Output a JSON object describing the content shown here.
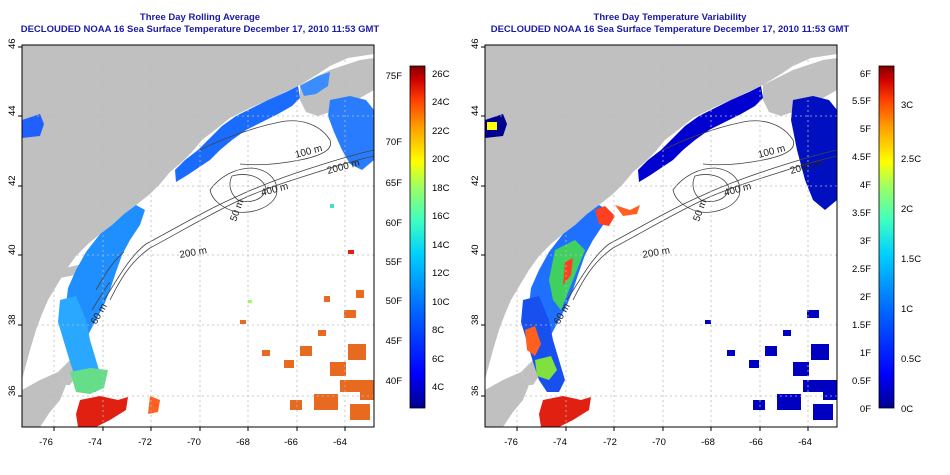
{
  "left": {
    "title": "Three Day Rolling Average",
    "subtitle": "DECLOUDED NOAA 16 Sea Surface Temperature December 17, 2010 11:53 GMT",
    "colorbar_f": [
      "75F",
      "70F",
      "65F",
      "60F",
      "55F",
      "50F",
      "45F",
      "40F"
    ],
    "colorbar_c": [
      "26C",
      "24C",
      "22C",
      "20C",
      "18C",
      "16C",
      "14C",
      "12C",
      "10C",
      "8C",
      "6C",
      "4C"
    ],
    "colorbar_colors": [
      "#00008f",
      "#0000ff",
      "#0070ff",
      "#00d0ff",
      "#40ffc0",
      "#a0ff60",
      "#ffff00",
      "#ffa000",
      "#ff4000",
      "#d00000",
      "#800000"
    ]
  },
  "right": {
    "title": "Three Day Temperature Variability",
    "subtitle": "DECLOUDED NOAA 16 Sea Surface Temperature December 17, 2010 11:53 GMT",
    "colorbar_f": [
      "6F",
      "5.5F",
      "5F",
      "4.5F",
      "4F",
      "3.5F",
      "3F",
      "2.5F",
      "2F",
      "1.5F",
      "1F",
      "0.5F",
      "0F"
    ],
    "colorbar_c": [
      "3C",
      "2.5C",
      "2C",
      "1.5C",
      "1C",
      "0.5C",
      "0C"
    ],
    "colorbar_colors": [
      "#00008f",
      "#0000ff",
      "#0070ff",
      "#00d0ff",
      "#40ffc0",
      "#a0ff60",
      "#ffff00",
      "#ffa000",
      "#ff4000",
      "#d00000",
      "#800000"
    ]
  },
  "axes": {
    "lon_ticks": [
      "-76",
      "-74",
      "-72",
      "-70",
      "-68",
      "-66",
      "-64"
    ],
    "lat_ticks": [
      "36",
      "38",
      "40",
      "42",
      "44",
      "46"
    ]
  },
  "contours": {
    "c100": "100 m",
    "c200": "200 m",
    "c2000": "2000 m",
    "c400": "400 m",
    "c50": "50 m",
    "c60": "60 m"
  },
  "colors": {
    "land": "#c0c0c0",
    "title": "#1a1aa6",
    "grid": "#bbbbbb",
    "contour": "#444444"
  }
}
